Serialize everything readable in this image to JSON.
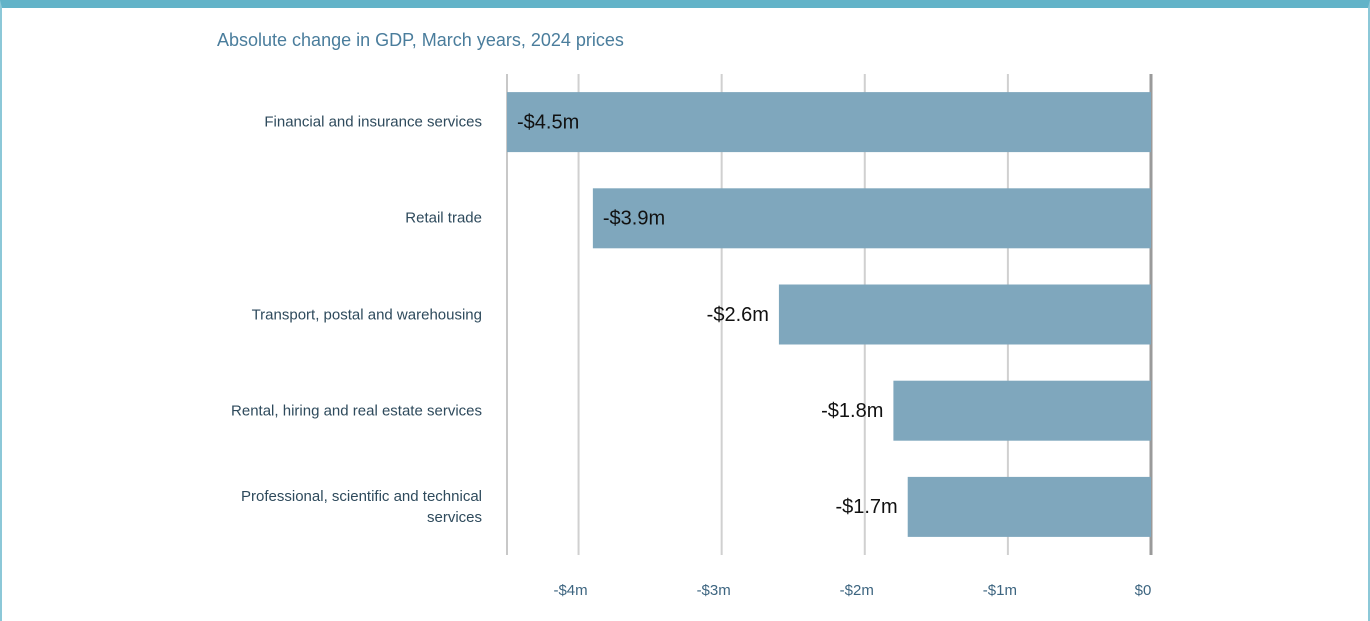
{
  "chart_data": {
    "type": "bar",
    "orientation": "horizontal",
    "title": "Absolute change in GDP, March years, 2024 prices",
    "categories": [
      "Financial and insurance services",
      "Retail trade",
      "Transport, postal and warehousing",
      "Rental, hiring and real estate services",
      "Professional, scientific and technical services"
    ],
    "values": [
      -4.5,
      -3.9,
      -2.6,
      -1.8,
      -1.7
    ],
    "value_labels": [
      "-$4.5m",
      "-$3.9m",
      "-$2.6m",
      "-$1.8m",
      "-$1.7m"
    ],
    "color": "#7fa7bd",
    "xlim": [
      -4.5,
      0
    ],
    "xticks": [
      {
        "value": -4,
        "label": "-$4m"
      },
      {
        "value": -3,
        "label": "-$3m"
      },
      {
        "value": -2,
        "label": "-$2m"
      },
      {
        "value": -1,
        "label": "-$1m"
      },
      {
        "value": 0,
        "label": "$0"
      }
    ],
    "grid": true
  }
}
